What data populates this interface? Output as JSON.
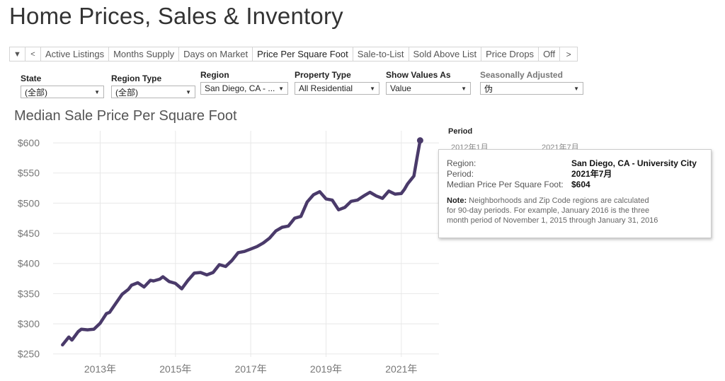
{
  "page": {
    "title": "Home Prices, Sales & Inventory"
  },
  "tabs": {
    "dropdown_glyph": "▼",
    "prev_glyph": "<",
    "next_glyph": ">",
    "items": [
      {
        "label": "Active Listings",
        "active": false
      },
      {
        "label": "Months Supply",
        "active": false
      },
      {
        "label": "Days on Market",
        "active": false
      },
      {
        "label": "Price Per Square Foot",
        "active": true
      },
      {
        "label": "Sale-to-List",
        "active": false
      },
      {
        "label": "Sold Above List",
        "active": false
      },
      {
        "label": "Price Drops",
        "active": false
      },
      {
        "label": "Off",
        "active": false
      }
    ]
  },
  "filters": {
    "state": {
      "label": "State",
      "value": "(全部)"
    },
    "region_type": {
      "label": "Region Type",
      "value": "(全部)"
    },
    "region": {
      "label": "Region",
      "value": "San Diego, CA - ..."
    },
    "property_type": {
      "label": "Property Type",
      "value": "All Residential"
    },
    "show_values_as": {
      "label": "Show Values As",
      "value": "Value"
    },
    "seasonally_adjusted": {
      "label": "Seasonally Adjusted",
      "value": "伪"
    }
  },
  "period_filter": {
    "label": "Period",
    "start": "2012年1月",
    "end": "2021年7月"
  },
  "tooltip": {
    "region_key": "Region:",
    "region_val": "San Diego, CA - University City",
    "period_key": "Period:",
    "period_val": "2021年7月",
    "metric_key": "Median Price Per Square Foot:",
    "metric_val": "$604",
    "note_label": "Note:",
    "note_line1": "Neighborhoods and Zip Code regions are calculated",
    "note_line2": "for 90-day periods.  For example, January 2016 is the three",
    "note_line3": "month period of November 1, 2015 through January 31, 2016"
  },
  "colors": {
    "line": "#4a3a6a",
    "grid": "#e8e8e8",
    "axis_text": "#777777"
  },
  "chart_data": {
    "type": "line",
    "title": "Median Sale Price Per Square Foot",
    "xlabel": "",
    "ylabel": "",
    "ylim": [
      245,
      620
    ],
    "xlim": [
      "2011-10",
      "2022-01"
    ],
    "y_ticks": [
      250,
      300,
      350,
      400,
      450,
      500,
      550,
      600
    ],
    "y_tick_labels": [
      "$250",
      "$300",
      "$350",
      "$400",
      "$450",
      "$500",
      "$550",
      "$600"
    ],
    "x_ticks": [
      "2013-01",
      "2015-01",
      "2017-01",
      "2019-01",
      "2021-01"
    ],
    "x_tick_labels": [
      "2013年",
      "2015年",
      "2017年",
      "2019年",
      "2021年"
    ],
    "grid": true,
    "series": [
      {
        "name": "San Diego, CA - University City",
        "points": [
          [
            "2012-01",
            265
          ],
          [
            "2012-03",
            278
          ],
          [
            "2012-04",
            273
          ],
          [
            "2012-06",
            287
          ],
          [
            "2012-07",
            291
          ],
          [
            "2012-09",
            290
          ],
          [
            "2012-11",
            291
          ],
          [
            "2013-01",
            301
          ],
          [
            "2013-03",
            317
          ],
          [
            "2013-04",
            319
          ],
          [
            "2013-06",
            334
          ],
          [
            "2013-08",
            349
          ],
          [
            "2013-10",
            357
          ],
          [
            "2013-11",
            364
          ],
          [
            "2014-01",
            368
          ],
          [
            "2014-03",
            361
          ],
          [
            "2014-05",
            372
          ],
          [
            "2014-06",
            371
          ],
          [
            "2014-08",
            374
          ],
          [
            "2014-09",
            378
          ],
          [
            "2014-11",
            370
          ],
          [
            "2015-01",
            367
          ],
          [
            "2015-03",
            358
          ],
          [
            "2015-05",
            372
          ],
          [
            "2015-07",
            384
          ],
          [
            "2015-09",
            385
          ],
          [
            "2015-11",
            381
          ],
          [
            "2016-01",
            385
          ],
          [
            "2016-03",
            398
          ],
          [
            "2016-05",
            395
          ],
          [
            "2016-07",
            405
          ],
          [
            "2016-09",
            418
          ],
          [
            "2016-11",
            420
          ],
          [
            "2017-01",
            424
          ],
          [
            "2017-03",
            428
          ],
          [
            "2017-05",
            434
          ],
          [
            "2017-07",
            442
          ],
          [
            "2017-09",
            454
          ],
          [
            "2017-11",
            460
          ],
          [
            "2018-01",
            462
          ],
          [
            "2018-03",
            475
          ],
          [
            "2018-05",
            478
          ],
          [
            "2018-07",
            502
          ],
          [
            "2018-09",
            514
          ],
          [
            "2018-11",
            519
          ],
          [
            "2019-01",
            507
          ],
          [
            "2019-03",
            505
          ],
          [
            "2019-05",
            489
          ],
          [
            "2019-07",
            493
          ],
          [
            "2019-09",
            503
          ],
          [
            "2019-11",
            505
          ],
          [
            "2020-01",
            512
          ],
          [
            "2020-03",
            518
          ],
          [
            "2020-05",
            512
          ],
          [
            "2020-07",
            508
          ],
          [
            "2020-09",
            520
          ],
          [
            "2020-11",
            515
          ],
          [
            "2021-01",
            516
          ],
          [
            "2021-02",
            523
          ],
          [
            "2021-03",
            532
          ],
          [
            "2021-05",
            545
          ],
          [
            "2021-06",
            575
          ],
          [
            "2021-07",
            604
          ]
        ]
      }
    ]
  }
}
